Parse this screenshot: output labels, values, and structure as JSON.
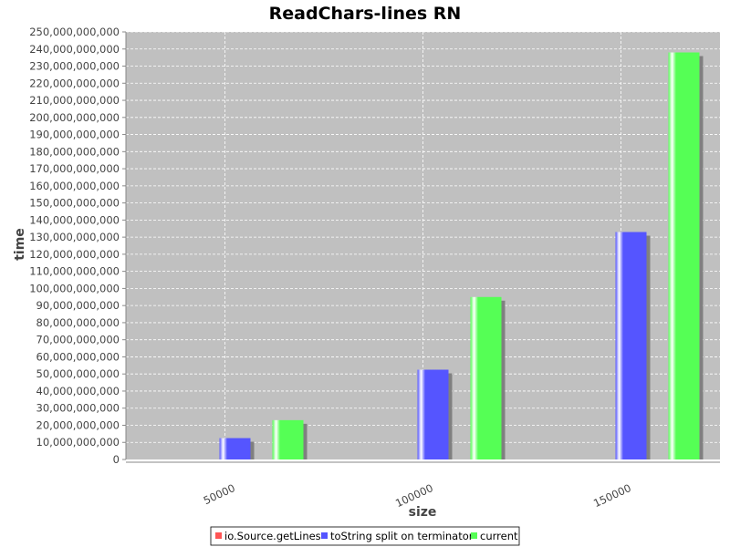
{
  "chart_data": {
    "type": "bar",
    "title": "ReadChars-lines RN",
    "xlabel": "size",
    "ylabel": "time",
    "categories": [
      "50000",
      "100000",
      "150000"
    ],
    "series": [
      {
        "name": "io.Source.getLines",
        "values": [
          0,
          0,
          0
        ],
        "color": "#ff5555"
      },
      {
        "name": "toString split on terminator",
        "values": [
          12500000000,
          52500000000,
          133000000000
        ],
        "color": "#5555ff"
      },
      {
        "name": "current",
        "values": [
          23000000000,
          95000000000,
          238000000000
        ],
        "color": "#55ff55"
      }
    ],
    "ylim": [
      0,
      250000000000
    ],
    "yticks": [
      "0",
      "10,000,000,000",
      "20,000,000,000",
      "30,000,000,000",
      "40,000,000,000",
      "50,000,000,000",
      "60,000,000,000",
      "70,000,000,000",
      "80,000,000,000",
      "90,000,000,000",
      "100,000,000,000",
      "110,000,000,000",
      "120,000,000,000",
      "130,000,000,000",
      "140,000,000,000",
      "150,000,000,000",
      "160,000,000,000",
      "170,000,000,000",
      "180,000,000,000",
      "190,000,000,000",
      "200,000,000,000",
      "210,000,000,000",
      "220,000,000,000",
      "230,000,000,000",
      "240,000,000,000",
      "250,000,000,000"
    ],
    "grid": true,
    "legend_position": "bottom",
    "plot_background": "#c0c0c0"
  }
}
